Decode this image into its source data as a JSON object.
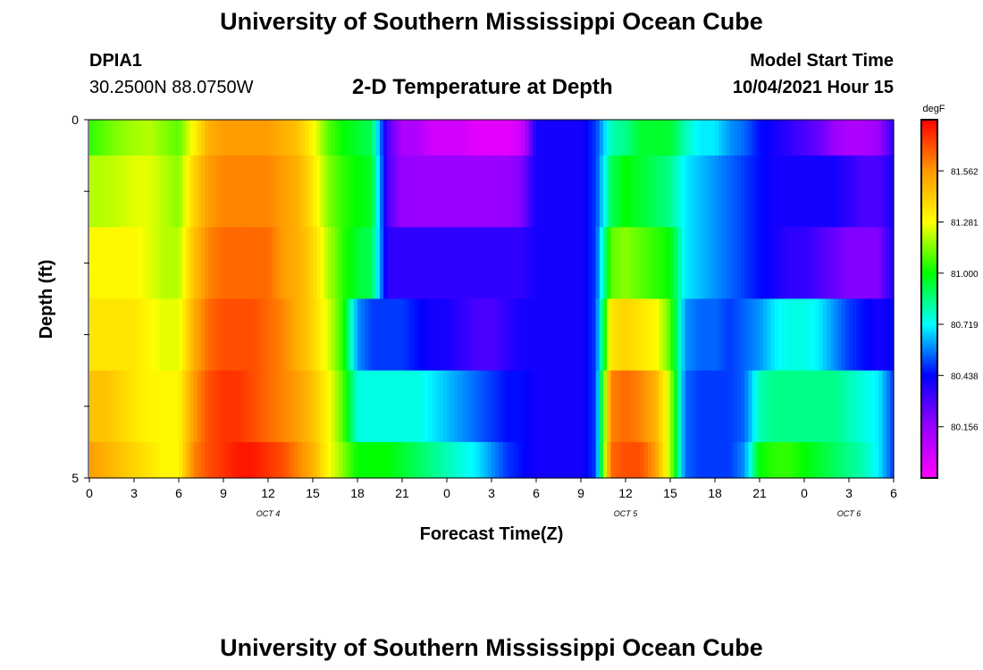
{
  "header": {
    "title_top": "University of Southern Mississippi Ocean Cube",
    "title_bottom": "University of Southern Mississippi Ocean Cube",
    "station_id": "DPIA1",
    "station_coords": "30.2500N  88.0750W",
    "chart_title": "2-D Temperature at Depth",
    "model_start_label": "Model Start Time",
    "model_start_value": "10/04/2021 Hour 15"
  },
  "chart_data": {
    "type": "heatmap",
    "title": "2-D Temperature at Depth",
    "xlabel": "Forecast Time(Z)",
    "ylabel": "Depth (ft)",
    "x_hours": [
      0,
      1,
      2,
      3,
      4,
      5,
      6,
      7,
      8,
      9,
      10,
      11,
      12,
      13,
      14,
      15,
      16,
      17,
      18,
      19,
      20,
      21,
      22,
      23,
      24,
      25,
      26,
      27,
      28,
      29,
      30,
      31,
      32,
      33,
      34,
      35,
      36,
      37,
      38,
      39,
      40,
      41,
      42,
      43,
      44,
      45,
      46,
      47,
      48,
      49,
      50,
      51,
      52,
      53,
      54
    ],
    "x_tick_labels": [
      "0",
      "3",
      "6",
      "9",
      "12",
      "15",
      "18",
      "21",
      "0",
      "3",
      "6",
      "9",
      "12",
      "15",
      "18",
      "21",
      "0",
      "3",
      "6"
    ],
    "x_tick_hours": [
      0,
      3,
      6,
      9,
      12,
      15,
      18,
      21,
      24,
      27,
      30,
      33,
      36,
      39,
      42,
      45,
      48,
      51,
      54
    ],
    "date_labels": [
      {
        "text": "OCT 4",
        "hour": 12
      },
      {
        "text": "OCT 5",
        "hour": 36
      },
      {
        "text": "OCT 6",
        "hour": 51
      }
    ],
    "xlim": [
      0,
      54
    ],
    "y_tick_labels": [
      "0",
      "5"
    ],
    "ylim": [
      0,
      5
    ],
    "depth_bands": [
      {
        "top": 0.0,
        "bottom": 0.5
      },
      {
        "top": 0.5,
        "bottom": 1.5
      },
      {
        "top": 1.5,
        "bottom": 2.5
      },
      {
        "top": 2.5,
        "bottom": 3.5
      },
      {
        "top": 3.5,
        "bottom": 4.5
      },
      {
        "top": 4.5,
        "bottom": 5.0
      }
    ],
    "layers": [
      [
        81.05,
        81.1,
        81.15,
        81.18,
        81.2,
        81.15,
        81.1,
        81.3,
        81.5,
        81.55,
        81.55,
        81.55,
        81.55,
        81.5,
        81.45,
        81.3,
        81.1,
        81.0,
        80.95,
        80.9,
        80.3,
        80.1,
        80.1,
        80.0,
        80.0,
        80.0,
        79.95,
        79.95,
        79.95,
        80.0,
        80.4,
        80.4,
        80.4,
        80.4,
        80.5,
        80.8,
        80.85,
        80.95,
        80.95,
        80.95,
        80.8,
        80.7,
        80.7,
        80.6,
        80.55,
        80.45,
        80.4,
        80.35,
        80.3,
        80.25,
        80.15,
        80.1,
        80.1,
        80.15,
        80.35
      ],
      [
        81.2,
        81.2,
        81.22,
        81.25,
        81.25,
        81.2,
        81.15,
        81.4,
        81.55,
        81.6,
        81.6,
        81.6,
        81.6,
        81.55,
        81.5,
        81.35,
        81.15,
        81.05,
        81.0,
        80.95,
        80.3,
        80.15,
        80.15,
        80.15,
        80.15,
        80.15,
        80.15,
        80.15,
        80.15,
        80.2,
        80.4,
        80.4,
        80.4,
        80.4,
        80.5,
        80.9,
        81.0,
        80.95,
        80.9,
        80.85,
        80.7,
        80.65,
        80.6,
        80.55,
        80.5,
        80.45,
        80.4,
        80.4,
        80.4,
        80.4,
        80.4,
        80.35,
        80.3,
        80.3,
        80.4
      ],
      [
        81.3,
        81.3,
        81.3,
        81.3,
        81.25,
        81.2,
        81.2,
        81.45,
        81.6,
        81.65,
        81.65,
        81.65,
        81.65,
        81.55,
        81.5,
        81.4,
        81.2,
        81.05,
        80.95,
        80.9,
        80.35,
        80.35,
        80.35,
        80.35,
        80.35,
        80.35,
        80.35,
        80.35,
        80.35,
        80.35,
        80.4,
        80.4,
        80.4,
        80.4,
        80.5,
        81.1,
        81.15,
        81.1,
        81.05,
        81.0,
        80.7,
        80.65,
        80.6,
        80.55,
        80.5,
        80.45,
        80.4,
        80.35,
        80.35,
        80.3,
        80.25,
        80.2,
        80.2,
        80.2,
        80.4
      ],
      [
        81.35,
        81.35,
        81.35,
        81.35,
        81.3,
        81.25,
        81.25,
        81.5,
        81.65,
        81.7,
        81.7,
        81.7,
        81.65,
        81.6,
        81.5,
        81.4,
        81.25,
        81.05,
        80.6,
        80.5,
        80.5,
        80.5,
        80.45,
        80.4,
        80.4,
        80.35,
        80.3,
        80.3,
        80.35,
        80.4,
        80.4,
        80.4,
        80.4,
        80.4,
        80.5,
        81.35,
        81.4,
        81.35,
        81.3,
        81.1,
        80.6,
        80.55,
        80.55,
        80.5,
        80.55,
        80.6,
        80.7,
        80.75,
        80.75,
        80.7,
        80.6,
        80.5,
        80.45,
        80.4,
        80.45
      ],
      [
        81.45,
        81.45,
        81.4,
        81.35,
        81.3,
        81.3,
        81.3,
        81.55,
        81.7,
        81.75,
        81.75,
        81.7,
        81.65,
        81.6,
        81.55,
        81.45,
        81.3,
        81.1,
        80.75,
        80.75,
        80.75,
        80.75,
        80.75,
        80.7,
        80.65,
        80.6,
        80.55,
        80.5,
        80.45,
        80.45,
        80.4,
        80.4,
        80.4,
        80.4,
        80.5,
        81.6,
        81.65,
        81.6,
        81.5,
        81.2,
        80.55,
        80.5,
        80.5,
        80.5,
        80.55,
        80.8,
        80.85,
        80.85,
        80.85,
        80.85,
        80.85,
        80.8,
        80.75,
        80.7,
        80.5
      ],
      [
        81.55,
        81.5,
        81.45,
        81.4,
        81.35,
        81.3,
        81.3,
        81.6,
        81.7,
        81.75,
        81.8,
        81.8,
        81.75,
        81.7,
        81.6,
        81.5,
        81.3,
        81.15,
        81.0,
        81.0,
        81.0,
        80.95,
        80.9,
        80.85,
        80.8,
        80.75,
        80.7,
        80.6,
        80.5,
        80.45,
        80.4,
        80.4,
        80.4,
        80.4,
        80.5,
        81.65,
        81.7,
        81.7,
        81.55,
        81.2,
        80.55,
        80.5,
        80.5,
        80.5,
        80.6,
        81.0,
        81.05,
        81.05,
        81.0,
        80.95,
        80.9,
        80.85,
        80.8,
        80.7,
        80.5
      ]
    ],
    "colorbar": {
      "unit": "degF",
      "tick_values": [
        81.562,
        81.281,
        81.0,
        80.719,
        80.438,
        80.156
      ],
      "tick_labels": [
        "81.562",
        "81.281",
        "81.000",
        "80.719",
        "80.438",
        "80.156"
      ],
      "min": 79.875,
      "max": 81.843,
      "palette": [
        "#ff00ff",
        "#9900ff",
        "#0000ff",
        "#00ffff",
        "#00ff00",
        "#ffff00",
        "#ff9900",
        "#ff0000"
      ]
    }
  }
}
